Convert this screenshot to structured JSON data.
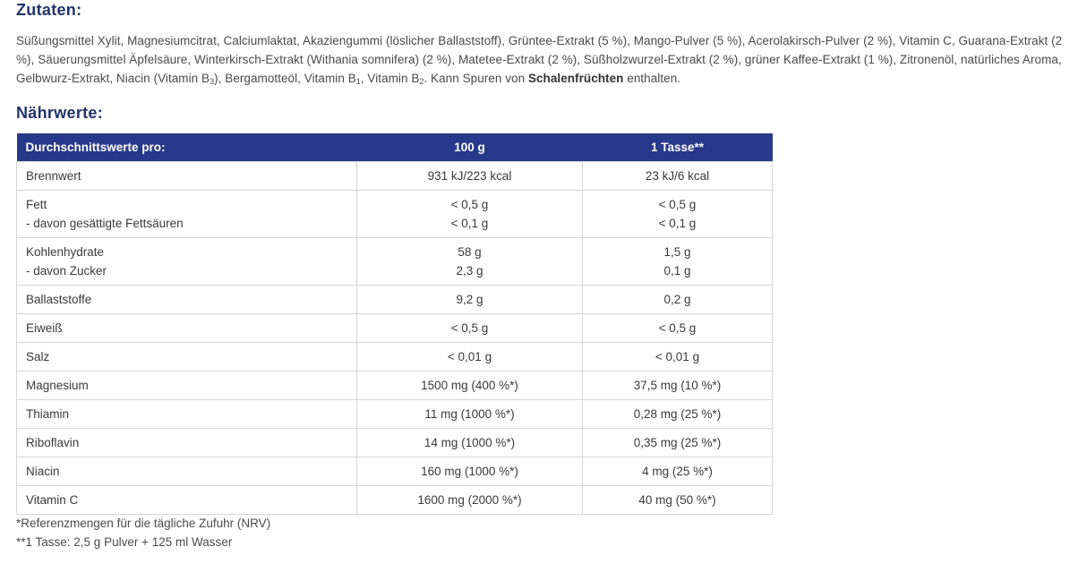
{
  "ingredients": {
    "heading": "Zutaten:",
    "text_before_bold": "Süßungsmittel Xylit, Magnesiumcitrat, Calciumlaktat, Akaziengummi (löslicher Ballaststoff), Grüntee-Extrakt (5 %), Mango-Pulver (5 %), Acerolakirsch-Pulver (2 %), Vitamin C, Guarana-Extrakt (2 %), Säuerungsmittel Äpfelsäure, Winterkirsch-Extrakt (Withania somnifera) (2 %), Matetee-Extrakt (2 %), Süßholzwurzel-Extrakt (2 %),  grüner Kaffee-Extrakt (1 %), Zitronenöl, natürliches Aroma, Gelbwurz-Extrakt, Niacin (Vitamin B",
    "sub_3": "3",
    "text_b1": "), Bergamotteöl, Vitamin B",
    "sub_1": "1",
    "text_b2": ", Vitamin B",
    "sub_2": "2",
    "text_kann": ". Kann Spuren von ",
    "bold": "Schalenfrüchten",
    "text_end": " enthalten."
  },
  "nutrition": {
    "heading": "Nährwerte:",
    "header": {
      "col0": "Durchschnittswerte pro:",
      "col1": "100 g",
      "col2": "1 Tasse**"
    },
    "rows": [
      {
        "label": [
          "Brennwert"
        ],
        "per100": [
          "931 kJ/223 kcal"
        ],
        "perCup": [
          "23 kJ/6 kcal"
        ]
      },
      {
        "label": [
          "Fett",
          "- davon gesättigte Fettsäuren"
        ],
        "per100": [
          "< 0,5 g",
          "< 0,1 g"
        ],
        "perCup": [
          "< 0,5 g",
          "< 0,1 g"
        ]
      },
      {
        "label": [
          "Kohlenhydrate",
          "- davon Zucker"
        ],
        "per100": [
          "58 g",
          "2,3 g"
        ],
        "perCup": [
          "1,5 g",
          "0,1 g"
        ]
      },
      {
        "label": [
          "Ballaststoffe"
        ],
        "per100": [
          "9,2 g"
        ],
        "perCup": [
          "0,2 g"
        ]
      },
      {
        "label": [
          "Eiweiß"
        ],
        "per100": [
          "< 0,5 g"
        ],
        "perCup": [
          "< 0,5 g"
        ]
      },
      {
        "label": [
          "Salz"
        ],
        "per100": [
          "< 0,01 g"
        ],
        "perCup": [
          "< 0,01 g"
        ]
      },
      {
        "label": [
          "Magnesium"
        ],
        "per100": [
          "1500 mg (400 %*)"
        ],
        "perCup": [
          "37,5 mg (10 %*)"
        ]
      },
      {
        "label": [
          "Thiamin"
        ],
        "per100": [
          "11 mg (1000 %*)"
        ],
        "perCup": [
          "0,28 mg (25 %*)"
        ]
      },
      {
        "label": [
          "Riboflavin"
        ],
        "per100": [
          "14 mg (1000 %*)"
        ],
        "perCup": [
          "0,35 mg (25 %*)"
        ]
      },
      {
        "label": [
          "Niacin"
        ],
        "per100": [
          "160 mg (1000 %*)"
        ],
        "perCup": [
          "4 mg (25 %*)"
        ]
      },
      {
        "label": [
          "Vitamin C"
        ],
        "per100": [
          "1600 mg (2000 %*)"
        ],
        "perCup": [
          "40 mg (50 %*)"
        ]
      }
    ]
  },
  "footnotes": {
    "nrv": "*Referenzmengen für die tägliche Zufuhr (NRV)",
    "cup": "**1 Tasse: 2,5 g Pulver + 125 ml Wasser"
  },
  "colors": {
    "heading": "#21336b",
    "table_header_bg": "#27398a",
    "border": "#d6d6d6"
  }
}
